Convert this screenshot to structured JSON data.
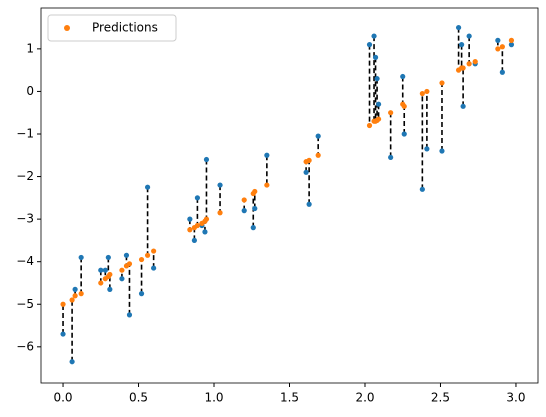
{
  "chart_data": {
    "type": "scatter",
    "x": [
      0.0,
      0.06,
      0.08,
      0.12,
      0.25,
      0.28,
      0.3,
      0.31,
      0.39,
      0.42,
      0.44,
      0.52,
      0.56,
      0.6,
      0.84,
      0.87,
      0.89,
      0.92,
      0.94,
      0.95,
      1.04,
      1.2,
      1.26,
      1.27,
      1.35,
      1.61,
      1.63,
      1.69,
      2.03,
      2.06,
      2.07,
      2.08,
      2.09,
      2.17,
      2.25,
      2.26,
      2.38,
      2.41,
      2.51,
      2.62,
      2.64,
      2.65,
      2.69,
      2.73,
      2.88,
      2.91,
      2.97
    ],
    "series": [
      {
        "color": "#1f77b4",
        "values": [
          -5.7,
          -6.35,
          -4.65,
          -3.9,
          -4.2,
          -4.2,
          -3.9,
          -4.65,
          -4.4,
          -3.85,
          -5.25,
          -4.75,
          -2.25,
          -4.15,
          -3.0,
          -3.5,
          -2.5,
          -3.15,
          -3.3,
          -1.6,
          -2.2,
          -2.8,
          -3.2,
          -2.75,
          -1.5,
          -1.9,
          -2.65,
          -1.05,
          1.1,
          1.3,
          0.8,
          0.3,
          -0.3,
          -1.55,
          0.35,
          -1.0,
          -2.3,
          -1.35,
          -1.4,
          1.5,
          1.1,
          -0.35,
          1.3,
          0.65,
          1.2,
          0.45,
          1.1
        ]
      },
      {
        "name": "Predictions",
        "color": "#ff7f0e",
        "values": [
          -5.0,
          -4.9,
          -4.8,
          -4.75,
          -4.5,
          -4.4,
          -4.35,
          -4.3,
          -4.2,
          -4.1,
          -4.05,
          -3.95,
          -3.85,
          -3.75,
          -3.25,
          -3.2,
          -3.15,
          -3.1,
          -3.05,
          -3.0,
          -2.85,
          -2.55,
          -2.4,
          -2.35,
          -2.2,
          -1.65,
          -1.62,
          -1.5,
          -0.8,
          -0.7,
          -0.7,
          -0.68,
          -0.65,
          -0.5,
          -0.3,
          -0.35,
          -0.05,
          0.0,
          0.2,
          0.5,
          0.55,
          0.55,
          0.65,
          0.7,
          1.0,
          1.05,
          1.2
        ]
      }
    ],
    "residual_color": "#000000",
    "xlim": [
      -0.146,
      3.146
    ],
    "ylim": [
      -6.85,
      1.96
    ],
    "xticks": [
      {
        "value": 0,
        "label": "0.0"
      },
      0.5,
      {
        "value": 1,
        "label": "1.0"
      },
      1.5,
      {
        "value": 2,
        "label": "2.0"
      },
      2.5,
      {
        "value": 3,
        "label": "3.0"
      }
    ],
    "yticks": [
      {
        "value": -6,
        "label": "−6"
      },
      {
        "value": -5,
        "label": "−5"
      },
      {
        "value": -4,
        "label": "−4"
      },
      {
        "value": -3,
        "label": "−3"
      },
      {
        "value": -2,
        "label": "−2"
      },
      {
        "value": -1,
        "label": "−1"
      },
      0,
      1
    ],
    "legend": "upper left"
  }
}
